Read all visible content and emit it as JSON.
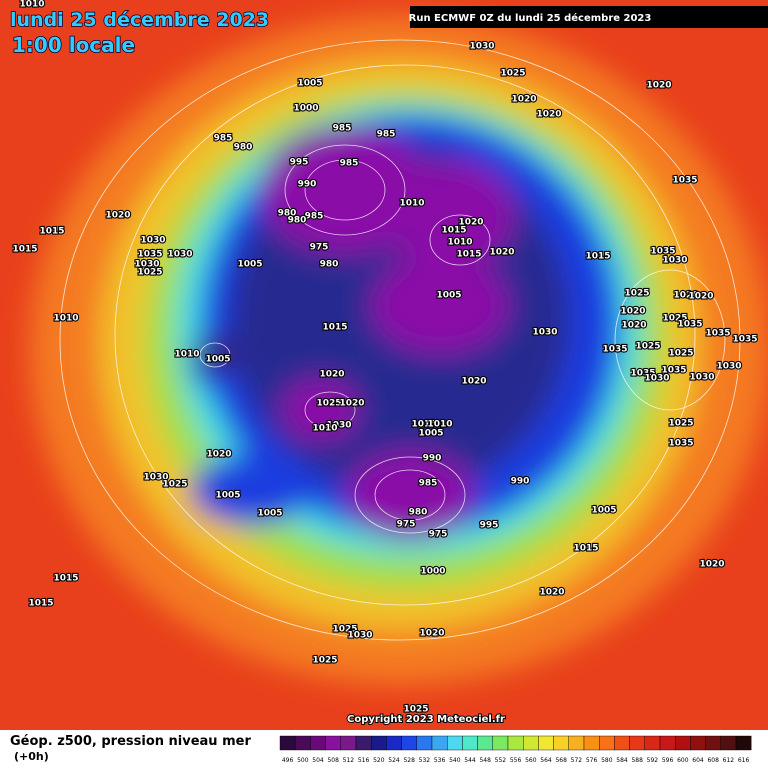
{
  "header": {
    "title": "lundi 25 décembre 2023",
    "subtitle": "1:00 locale",
    "run": "Run ECMWF 0Z du lundi 25 décembre 2023"
  },
  "isobars": {
    "labels": [
      1010,
      1030,
      1025,
      1020,
      1020,
      1020,
      1005,
      1000,
      985,
      985,
      985,
      980,
      995,
      985,
      990,
      1010,
      980,
      985,
      980,
      975,
      980,
      1020,
      1015,
      1010,
      1015,
      1020,
      1005,
      1020,
      1015,
      1015,
      1030,
      1035,
      1030,
      1030,
      1025,
      1010,
      1015,
      1005,
      1030,
      1015,
      1035,
      1035,
      1030,
      1025,
      1020,
      1020,
      1020,
      1025,
      1035,
      1020,
      1035,
      1035,
      1025,
      1035,
      1025,
      1030,
      1035,
      1030,
      1035,
      1030,
      1025,
      1035,
      1010,
      1005,
      1020,
      1020,
      1025,
      1020,
      1030,
      1010,
      1015,
      1010,
      1005,
      1020,
      990,
      985,
      990,
      1030,
      1025,
      1005,
      1005,
      980,
      975,
      975,
      995,
      1005,
      1015,
      1000,
      1020,
      1020,
      1015,
      1015,
      1025,
      1030,
      1020,
      1025,
      1025
    ]
  },
  "footer": {
    "product": "Géop. z500, pression niveau mer",
    "lead": "(+0h)",
    "copyright": "Copyright 2023 Meteociel.fr"
  },
  "legend": {
    "values": [
      496,
      500,
      504,
      508,
      512,
      516,
      520,
      524,
      528,
      532,
      536,
      540,
      544,
      548,
      552,
      556,
      560,
      564,
      568,
      572,
      576,
      580,
      584,
      588,
      592,
      596,
      600,
      604,
      608,
      612,
      616
    ],
    "colors": [
      "#2a0a3a",
      "#4a0a5a",
      "#6a0a7a",
      "#8a10a0",
      "#7a1a8a",
      "#3a1a6a",
      "#1a1a8a",
      "#1a28c8",
      "#1e46e6",
      "#2a78f0",
      "#3aa8f0",
      "#4cd8f0",
      "#50e8c8",
      "#5ce890",
      "#7ae860",
      "#a8e840",
      "#d0e830",
      "#f0e830",
      "#f8d028",
      "#f8b020",
      "#f89018",
      "#f87018",
      "#f05018",
      "#e83818",
      "#d82818",
      "#c81818",
      "#b01010",
      "#901010",
      "#701010",
      "#501010",
      "#200808"
    ]
  }
}
